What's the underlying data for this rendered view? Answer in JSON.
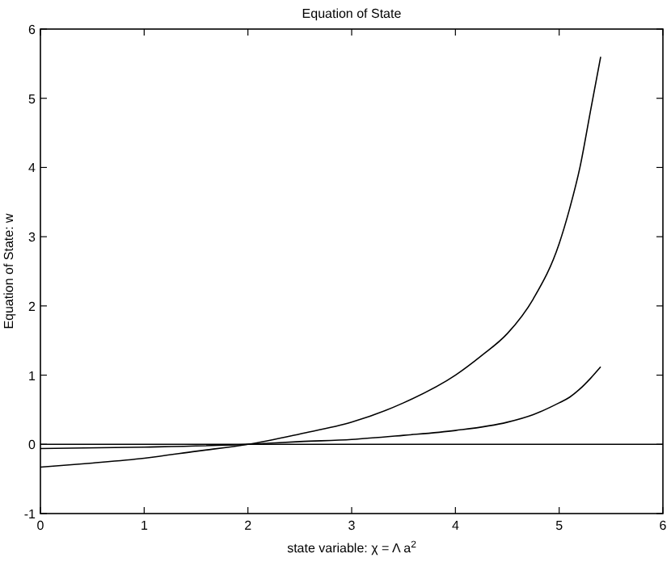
{
  "chart_data": {
    "type": "line",
    "title": "Equation of State",
    "xlabel": "state variable: χ = Λ a$^{2}$",
    "ylabel": "Equation of State: w",
    "xlim": [
      0,
      6
    ],
    "ylim": [
      -1,
      6
    ],
    "xticks": [
      0,
      1,
      2,
      3,
      4,
      5,
      6
    ],
    "yticks": [
      -1,
      0,
      1,
      2,
      3,
      4,
      5,
      6
    ],
    "grid": false,
    "marker": "none",
    "line_style": "solid",
    "series": [
      {
        "color": "#000000",
        "x": [
          0,
          0.5,
          1,
          1.5,
          2,
          2.5,
          3,
          3.5,
          4,
          4.25,
          4.5,
          4.75,
          5,
          5.1,
          5.2,
          5.3,
          5.4
        ],
        "values": [
          -0.33,
          -0.27,
          -0.2,
          -0.1,
          0,
          0.15,
          0.32,
          0.6,
          1.0,
          1.28,
          1.6,
          2.1,
          2.9,
          3.4,
          4.0,
          4.8,
          5.6
        ]
      },
      {
        "color": "#000000",
        "x": [
          0,
          1,
          2,
          2.5,
          3,
          3.5,
          4,
          4.5,
          4.75,
          5,
          5.1,
          5.2,
          5.3,
          5.4
        ],
        "values": [
          -0.06,
          -0.04,
          0,
          0.04,
          0.07,
          0.13,
          0.2,
          0.32,
          0.43,
          0.6,
          0.68,
          0.8,
          0.95,
          1.12
        ]
      }
    ],
    "ref_lines": [
      {
        "axis": "y",
        "value": 0,
        "color": "#000000"
      }
    ]
  }
}
